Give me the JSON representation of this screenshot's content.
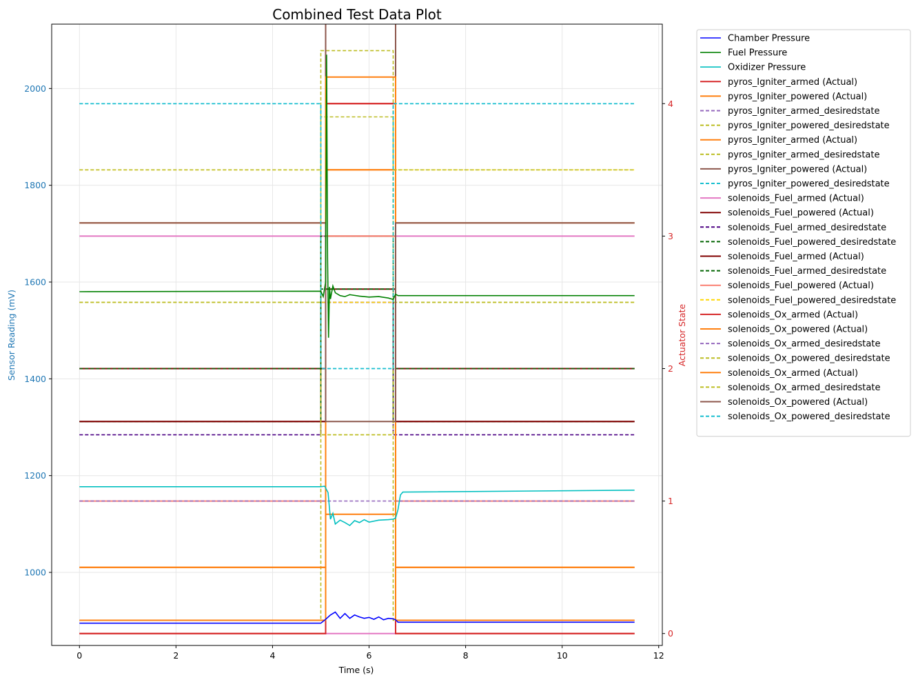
{
  "chart_data": {
    "type": "line",
    "title": "Combined Test Data Plot",
    "xlabel": "Time (s)",
    "ylabel_left": "Sensor Reading (mV)",
    "ylabel_right": "Actuator State",
    "xlim": [
      -0.575,
      12.075
    ],
    "ylim_left": [
      849,
      2133
    ],
    "ylim_right": [
      -0.09,
      4.6
    ],
    "x_ticks": [
      0,
      2,
      4,
      6,
      8,
      10,
      12
    ],
    "y_ticks_left": [
      1000,
      1200,
      1400,
      1600,
      1800,
      2000
    ],
    "y_ticks_right": [
      0,
      1,
      2,
      3,
      4
    ],
    "grid": true,
    "legend_position": "outside-right",
    "colors": {
      "left_axis": "#1f77b4",
      "right_axis": "#d62728"
    },
    "sensor_series": [
      {
        "name": "Chamber Pressure",
        "color": "#0000ff",
        "x": [
          0,
          5.0,
          5.1,
          5.2,
          5.3,
          5.4,
          5.5,
          5.6,
          5.7,
          5.8,
          5.9,
          6.0,
          6.1,
          6.2,
          6.3,
          6.4,
          6.5,
          6.55,
          6.6,
          11.5
        ],
        "y": [
          895,
          895,
          903,
          912,
          918,
          905,
          915,
          905,
          912,
          908,
          905,
          907,
          903,
          908,
          902,
          905,
          904,
          902,
          897,
          897
        ]
      },
      {
        "name": "Fuel Pressure",
        "color": "#008000",
        "x": [
          0,
          5.0,
          5.05,
          5.1,
          5.12,
          5.14,
          5.16,
          5.18,
          5.2,
          5.25,
          5.3,
          5.4,
          5.5,
          5.6,
          5.8,
          6.0,
          6.2,
          6.4,
          6.5,
          6.55,
          6.6,
          11.5
        ],
        "y": [
          1580,
          1581,
          1570,
          1600,
          2070,
          1650,
          1485,
          1590,
          1565,
          1592,
          1578,
          1572,
          1570,
          1574,
          1571,
          1569,
          1570,
          1567,
          1564,
          1575,
          1572,
          1572
        ]
      },
      {
        "name": "Oxidizer Pressure",
        "color": "#00bfbf",
        "x": [
          0,
          5.0,
          5.08,
          5.15,
          5.2,
          5.25,
          5.3,
          5.4,
          5.5,
          5.6,
          5.7,
          5.8,
          5.9,
          6.0,
          6.2,
          6.4,
          6.5,
          6.55,
          6.6,
          6.65,
          6.7,
          11.5
        ],
        "y": [
          1177,
          1177,
          1178,
          1165,
          1110,
          1122,
          1100,
          1108,
          1103,
          1097,
          1107,
          1103,
          1109,
          1104,
          1108,
          1109,
          1110,
          1112,
          1130,
          1160,
          1166,
          1170
        ]
      }
    ],
    "actuator_series": [
      {
        "name": "pyros_Igniter_armed (Actual)",
        "color": "#d62728",
        "style": "solid",
        "values": [
          0,
          4
        ]
      },
      {
        "name": "pyros_Igniter_powered (Actual)",
        "color": "#ff7f0e",
        "style": "solid",
        "values": [
          0.5,
          3.5
        ]
      },
      {
        "name": "pyros_Igniter_armed_desiredstate",
        "color": "#9467bd",
        "style": "dashed",
        "values": [
          1.5,
          2.5
        ]
      },
      {
        "name": "pyros_Igniter_powered_desiredstate",
        "color": "#bcbd22",
        "style": "dashed",
        "values": [
          2.5,
          1.5
        ]
      },
      {
        "name": "pyros_Igniter_armed (Actual)",
        "color": "#ff7f0e",
        "style": "solid",
        "values": [
          3.1,
          0.9
        ]
      },
      {
        "name": "pyros_Igniter_armed_desiredstate",
        "color": "#bcbd22",
        "style": "dashed",
        "values": [
          0.1,
          4.4
        ]
      },
      {
        "name": "pyros_Igniter_powered (Actual)",
        "color": "#8c564b",
        "style": "solid",
        "values": [
          1.6,
          4.8
        ]
      },
      {
        "name": "pyros_Igniter_powered_desiredstate",
        "color": "#17becf",
        "style": "dashed",
        "values": [
          4,
          2
        ]
      },
      {
        "name": "solenoids_Fuel_armed (Actual)",
        "color": "#e377c2",
        "style": "solid",
        "values": [
          3,
          0
        ]
      },
      {
        "name": "solenoids_Fuel_powered (Actual)",
        "color": "#800000",
        "style": "solid",
        "values": [
          2,
          3
        ]
      },
      {
        "name": "solenoids_Fuel_armed_desiredstate",
        "color": "#4b0082",
        "style": "dashed",
        "values": [
          1.5,
          2.5
        ]
      },
      {
        "name": "solenoids_Fuel_powered_desiredstate",
        "color": "#006400",
        "style": "dashed",
        "values": [
          1.6,
          3
        ]
      },
      {
        "name": "solenoids_Fuel_armed (Actual)",
        "color": "#800000",
        "style": "solid",
        "values": [
          1.6,
          2.6
        ]
      },
      {
        "name": "solenoids_Fuel_armed_desiredstate",
        "color": "#006400",
        "style": "dashed",
        "values": [
          2,
          2.6
        ]
      },
      {
        "name": "solenoids_Fuel_powered (Actual)",
        "color": "#fa8072",
        "style": "solid",
        "values": [
          1,
          3
        ]
      },
      {
        "name": "solenoids_Fuel_powered_desiredstate",
        "color": "#ffd700",
        "style": "dashed",
        "values": [
          3.5,
          2.5
        ]
      },
      {
        "name": "solenoids_Ox_armed (Actual)",
        "color": "#d62728",
        "style": "solid",
        "values": [
          0,
          4
        ]
      },
      {
        "name": "solenoids_Ox_powered (Actual)",
        "color": "#ff7f0e",
        "style": "solid",
        "values": [
          0.5,
          3.5
        ]
      },
      {
        "name": "solenoids_Ox_armed_desiredstate",
        "color": "#9467bd",
        "style": "dashed",
        "values": [
          1,
          1
        ]
      },
      {
        "name": "solenoids_Ox_powered_desiredstate",
        "color": "#bcbd22",
        "style": "dashed",
        "values": [
          2.5,
          1.5
        ]
      },
      {
        "name": "solenoids_Ox_armed (Actual)",
        "color": "#ff7f0e",
        "style": "solid",
        "values": [
          0.1,
          4.2
        ]
      },
      {
        "name": "solenoids_Ox_armed_desiredstate",
        "color": "#bcbd22",
        "style": "dashed",
        "values": [
          3.5,
          3.9
        ]
      },
      {
        "name": "solenoids_Ox_powered (Actual)",
        "color": "#8c564b",
        "style": "solid",
        "values": [
          3.1,
          1.6
        ]
      },
      {
        "name": "solenoids_Ox_powered_desiredstate",
        "color": "#17becf",
        "style": "dashed",
        "values": [
          4,
          2
        ]
      }
    ],
    "actuator_transitions": {
      "on_time": 5.1,
      "off_time": 6.55,
      "desired_on_time": 5.0,
      "desired_off_time": 6.5,
      "end_time": 11.5
    }
  }
}
